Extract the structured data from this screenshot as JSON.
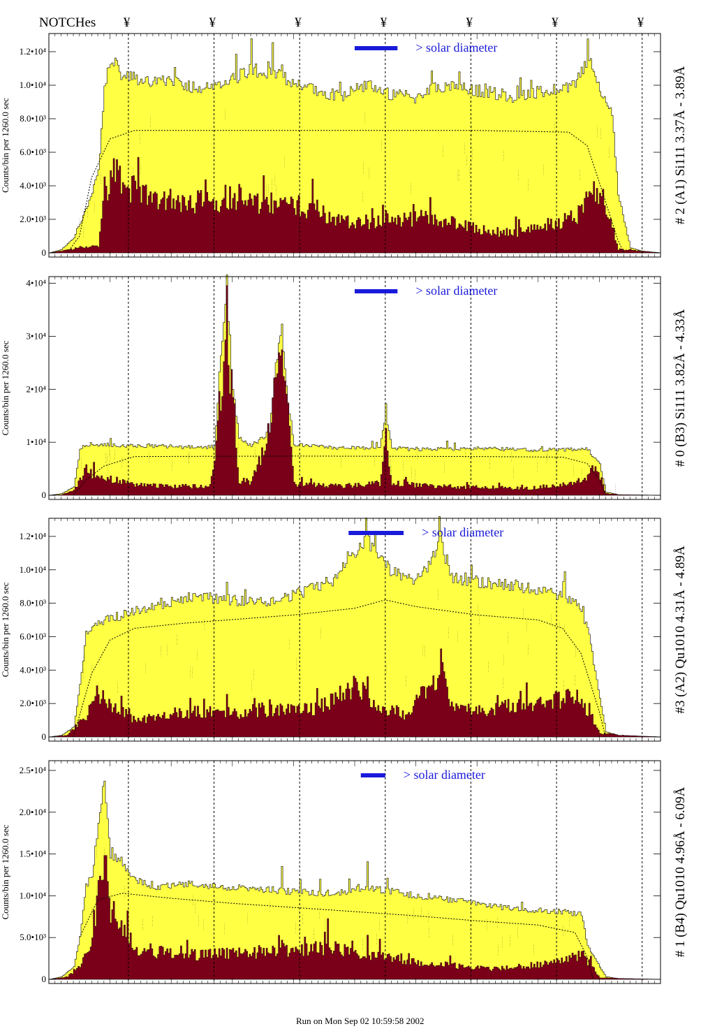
{
  "header": {
    "notches_label": "NOTCHes",
    "notch_symbol": "¥"
  },
  "footer": {
    "run_text": "Run on Mon Sep 02 10:59:58 2002"
  },
  "colors": {
    "total": "#ffff44",
    "continuum": "#7a0019",
    "solar": "#1a1adb"
  },
  "chart_data": [
    {
      "type": "area",
      "title": "# 2 (A1) Si111  3.37Å - 3.89Å",
      "ylabel": "Counts/bin per  1260.0 sec",
      "annotation": "> solar diameter",
      "ylim": [
        0,
        13000
      ],
      "yticks": [
        {
          "v": 0,
          "label": "0"
        },
        {
          "v": 2000,
          "label": "2.0•10³"
        },
        {
          "v": 4000,
          "label": "4.0•10³"
        },
        {
          "v": 6000,
          "label": "6.0•10³"
        },
        {
          "v": 8000,
          "label": "8.0•10³"
        },
        {
          "v": 10000,
          "label": "1.0•10⁴"
        },
        {
          "v": 12000,
          "label": "1.2•10⁴"
        }
      ],
      "xlim": [
        0,
        100
      ],
      "notches": [
        13,
        27,
        41,
        55,
        69,
        83,
        97
      ],
      "total_knots": [
        [
          0,
          0
        ],
        [
          2,
          200
        ],
        [
          4,
          900
        ],
        [
          6,
          2600
        ],
        [
          8,
          4800
        ],
        [
          9,
          9800
        ],
        [
          10,
          11600
        ],
        [
          12,
          10500
        ],
        [
          16,
          10300
        ],
        [
          20,
          10100
        ],
        [
          27,
          9800
        ],
        [
          33,
          11000
        ],
        [
          38,
          10500
        ],
        [
          44,
          9600
        ],
        [
          48,
          9400
        ],
        [
          52,
          10100
        ],
        [
          56,
          9400
        ],
        [
          60,
          9300
        ],
        [
          64,
          10000
        ],
        [
          67,
          9800
        ],
        [
          72,
          9600
        ],
        [
          76,
          9300
        ],
        [
          82,
          9700
        ],
        [
          86,
          10100
        ],
        [
          88,
          11600
        ],
        [
          90,
          9800
        ],
        [
          92,
          8300
        ],
        [
          93,
          3500
        ],
        [
          95,
          300
        ],
        [
          97,
          100
        ],
        [
          100,
          0
        ]
      ],
      "cont_knots": [
        [
          0,
          0
        ],
        [
          2,
          100
        ],
        [
          5,
          300
        ],
        [
          8,
          400
        ],
        [
          9,
          3600
        ],
        [
          11,
          4600
        ],
        [
          14,
          3300
        ],
        [
          20,
          3000
        ],
        [
          26,
          2800
        ],
        [
          30,
          3200
        ],
        [
          34,
          2600
        ],
        [
          38,
          2700
        ],
        [
          42,
          2500
        ],
        [
          48,
          1800
        ],
        [
          52,
          1700
        ],
        [
          55,
          1900
        ],
        [
          58,
          1800
        ],
        [
          62,
          2000
        ],
        [
          66,
          1600
        ],
        [
          70,
          1300
        ],
        [
          74,
          1100
        ],
        [
          78,
          1200
        ],
        [
          82,
          1600
        ],
        [
          86,
          2000
        ],
        [
          89,
          3200
        ],
        [
          91,
          2800
        ],
        [
          93,
          200
        ],
        [
          100,
          0
        ]
      ],
      "total_spikes": [
        [
          33,
          1500
        ],
        [
          38,
          1000
        ],
        [
          67,
          700
        ],
        [
          88,
          1200
        ]
      ],
      "cont_spikes": [
        [
          35,
          1900
        ],
        [
          43,
          800
        ],
        [
          58,
          900
        ],
        [
          66,
          600
        ],
        [
          89,
          700
        ]
      ],
      "model_knots": [
        [
          3,
          0
        ],
        [
          5,
          1000
        ],
        [
          7,
          4500
        ],
        [
          10,
          6800
        ],
        [
          14,
          7300
        ],
        [
          40,
          7300
        ],
        [
          70,
          7300
        ],
        [
          85,
          7200
        ],
        [
          88,
          6400
        ],
        [
          90,
          4200
        ],
        [
          93,
          800
        ],
        [
          94,
          0
        ]
      ],
      "solar_bar": [
        50,
        57
      ]
    },
    {
      "type": "area",
      "title": "# 0 (B3) Si111  3.82Å - 4.33Å",
      "ylabel": "Counts/bin per  1260.0 sec",
      "annotation": "> solar diameter",
      "ylim": [
        0,
        41000
      ],
      "yticks": [
        {
          "v": 0,
          "label": "0"
        },
        {
          "v": 10000,
          "label": "1•10⁴"
        },
        {
          "v": 20000,
          "label": "2•10⁴"
        },
        {
          "v": 30000,
          "label": "3•10⁴"
        },
        {
          "v": 40000,
          "label": "4•10⁴"
        }
      ],
      "xlim": [
        0,
        100
      ],
      "notches": [
        13,
        27,
        41,
        55,
        69,
        83,
        97
      ],
      "total_knots": [
        [
          0,
          0
        ],
        [
          2,
          300
        ],
        [
          4,
          1600
        ],
        [
          5,
          8600
        ],
        [
          6,
          9600
        ],
        [
          14,
          9400
        ],
        [
          25,
          9000
        ],
        [
          27,
          9200
        ],
        [
          28,
          27000
        ],
        [
          29,
          38000
        ],
        [
          30,
          20000
        ],
        [
          31,
          11000
        ],
        [
          33,
          9300
        ],
        [
          36,
          12000
        ],
        [
          37,
          25000
        ],
        [
          38,
          31000
        ],
        [
          39,
          18000
        ],
        [
          40,
          9500
        ],
        [
          46,
          9000
        ],
        [
          54,
          8800
        ],
        [
          55,
          15000
        ],
        [
          56,
          9000
        ],
        [
          60,
          8600
        ],
        [
          70,
          8900
        ],
        [
          80,
          8500
        ],
        [
          88,
          8700
        ],
        [
          90,
          5800
        ],
        [
          91,
          600
        ],
        [
          93,
          100
        ],
        [
          100,
          0
        ]
      ],
      "cont_knots": [
        [
          0,
          0
        ],
        [
          2,
          100
        ],
        [
          4,
          800
        ],
        [
          6,
          4400
        ],
        [
          8,
          3300
        ],
        [
          14,
          1800
        ],
        [
          20,
          1600
        ],
        [
          26,
          1500
        ],
        [
          27,
          5000
        ],
        [
          28,
          18000
        ],
        [
          29,
          28000
        ],
        [
          30,
          18000
        ],
        [
          31,
          2600
        ],
        [
          33,
          2200
        ],
        [
          35,
          8000
        ],
        [
          37,
          20000
        ],
        [
          38,
          25000
        ],
        [
          39,
          15000
        ],
        [
          40,
          1900
        ],
        [
          48,
          1600
        ],
        [
          54,
          2100
        ],
        [
          55,
          8600
        ],
        [
          56,
          2100
        ],
        [
          62,
          1600
        ],
        [
          70,
          1400
        ],
        [
          78,
          1200
        ],
        [
          86,
          2000
        ],
        [
          89,
          4400
        ],
        [
          90,
          3000
        ],
        [
          91,
          300
        ],
        [
          100,
          0
        ]
      ],
      "total_spikes": [
        [
          29,
          4000
        ],
        [
          38,
          2000
        ],
        [
          55,
          2000
        ],
        [
          65,
          1500
        ]
      ],
      "cont_spikes": [
        [
          29,
          3000
        ],
        [
          38,
          2000
        ],
        [
          55,
          1000
        ]
      ],
      "model_knots": [
        [
          4,
          0
        ],
        [
          6,
          2800
        ],
        [
          9,
          5500
        ],
        [
          14,
          7300
        ],
        [
          40,
          7400
        ],
        [
          70,
          7300
        ],
        [
          84,
          7200
        ],
        [
          88,
          6000
        ],
        [
          90,
          3000
        ],
        [
          91,
          0
        ]
      ],
      "solar_bar": [
        50,
        57
      ]
    },
    {
      "type": "area",
      "title": "#3 (A2) Qu1010  4.31Å - 4.89Å",
      "ylabel": "Counts/bin per  1260.0 sec",
      "annotation": "> solar diameter",
      "ylim": [
        0,
        13000
      ],
      "yticks": [
        {
          "v": 0,
          "label": "0"
        },
        {
          "v": 2000,
          "label": "2.0•10³"
        },
        {
          "v": 4000,
          "label": "4.0•10³"
        },
        {
          "v": 6000,
          "label": "6.0•10³"
        },
        {
          "v": 8000,
          "label": "8.0•10³"
        },
        {
          "v": 10000,
          "label": "1.0•10⁴"
        },
        {
          "v": 12000,
          "label": "1.2•10⁴"
        }
      ],
      "xlim": [
        0,
        100
      ],
      "notches": [
        13,
        27,
        41,
        55,
        69,
        83,
        97
      ],
      "total_knots": [
        [
          0,
          0
        ],
        [
          2,
          100
        ],
        [
          4,
          600
        ],
        [
          5,
          3200
        ],
        [
          6,
          6200
        ],
        [
          8,
          6900
        ],
        [
          14,
          7500
        ],
        [
          22,
          8300
        ],
        [
          28,
          8300
        ],
        [
          34,
          8000
        ],
        [
          40,
          8500
        ],
        [
          46,
          9300
        ],
        [
          52,
          11800
        ],
        [
          56,
          9900
        ],
        [
          60,
          9300
        ],
        [
          64,
          11500
        ],
        [
          66,
          9500
        ],
        [
          72,
          9200
        ],
        [
          80,
          8800
        ],
        [
          86,
          8200
        ],
        [
          88,
          6600
        ],
        [
          90,
          2300
        ],
        [
          91,
          300
        ],
        [
          93,
          100
        ],
        [
          100,
          0
        ]
      ],
      "cont_knots": [
        [
          0,
          0
        ],
        [
          3,
          100
        ],
        [
          6,
          1200
        ],
        [
          8,
          2300
        ],
        [
          10,
          1800
        ],
        [
          14,
          900
        ],
        [
          20,
          1300
        ],
        [
          26,
          1400
        ],
        [
          32,
          1300
        ],
        [
          38,
          1500
        ],
        [
          44,
          1600
        ],
        [
          50,
          2800
        ],
        [
          54,
          1700
        ],
        [
          58,
          1200
        ],
        [
          62,
          2800
        ],
        [
          64,
          3600
        ],
        [
          66,
          1700
        ],
        [
          70,
          1400
        ],
        [
          76,
          1700
        ],
        [
          82,
          2000
        ],
        [
          86,
          2200
        ],
        [
          88,
          1500
        ],
        [
          90,
          200
        ],
        [
          100,
          0
        ]
      ],
      "total_spikes": [
        [
          29,
          1000
        ],
        [
          52,
          800
        ],
        [
          64,
          1000
        ]
      ],
      "cont_spikes": [
        [
          29,
          900
        ],
        [
          52,
          700
        ],
        [
          64,
          700
        ]
      ],
      "model_knots": [
        [
          4,
          0
        ],
        [
          7,
          3800
        ],
        [
          10,
          5800
        ],
        [
          14,
          6500
        ],
        [
          22,
          6800
        ],
        [
          40,
          7300
        ],
        [
          50,
          7700
        ],
        [
          55,
          8200
        ],
        [
          60,
          7800
        ],
        [
          70,
          7300
        ],
        [
          80,
          7000
        ],
        [
          84,
          6500
        ],
        [
          87,
          5000
        ],
        [
          90,
          1500
        ],
        [
          91,
          0
        ]
      ],
      "solar_bar": [
        49,
        58
      ]
    },
    {
      "type": "area",
      "title": "# 1 (B4) Qu1010 4.96Å - 6.09Å",
      "ylabel": "Counts/bin per  1260.0 sec",
      "annotation": "> solar diameter",
      "ylim": [
        0,
        26000
      ],
      "yticks": [
        {
          "v": 0,
          "label": "0"
        },
        {
          "v": 5000,
          "label": "5.0•10³"
        },
        {
          "v": 10000,
          "label": "1.0•10⁴"
        },
        {
          "v": 15000,
          "label": "1.5•10⁴"
        },
        {
          "v": 20000,
          "label": "2.0•10⁴"
        },
        {
          "v": 25000,
          "label": "2.5•10⁴"
        }
      ],
      "xlim": [
        0,
        100
      ],
      "notches": [
        13,
        27,
        41,
        55,
        69,
        83,
        97
      ],
      "total_knots": [
        [
          0,
          0
        ],
        [
          2,
          300
        ],
        [
          4,
          1500
        ],
        [
          5,
          5000
        ],
        [
          6,
          11000
        ],
        [
          7,
          12500
        ],
        [
          8,
          19000
        ],
        [
          9,
          23500
        ],
        [
          10,
          15000
        ],
        [
          12,
          14000
        ],
        [
          14,
          12000
        ],
        [
          18,
          11000
        ],
        [
          22,
          11500
        ],
        [
          28,
          11000
        ],
        [
          34,
          10800
        ],
        [
          40,
          10500
        ],
        [
          46,
          10300
        ],
        [
          52,
          11000
        ],
        [
          56,
          10500
        ],
        [
          60,
          10000
        ],
        [
          66,
          9500
        ],
        [
          72,
          8800
        ],
        [
          78,
          8300
        ],
        [
          84,
          8100
        ],
        [
          87,
          7700
        ],
        [
          88,
          4000
        ],
        [
          90,
          1500
        ],
        [
          91,
          300
        ],
        [
          93,
          100
        ],
        [
          100,
          0
        ]
      ],
      "cont_knots": [
        [
          0,
          0
        ],
        [
          3,
          300
        ],
        [
          5,
          1600
        ],
        [
          7,
          3700
        ],
        [
          8,
          9700
        ],
        [
          9,
          14000
        ],
        [
          10,
          7600
        ],
        [
          12,
          5200
        ],
        [
          14,
          3500
        ],
        [
          20,
          2700
        ],
        [
          26,
          2800
        ],
        [
          32,
          2900
        ],
        [
          38,
          3200
        ],
        [
          44,
          3600
        ],
        [
          48,
          3300
        ],
        [
          52,
          2600
        ],
        [
          56,
          2300
        ],
        [
          60,
          1800
        ],
        [
          66,
          1500
        ],
        [
          72,
          1200
        ],
        [
          78,
          1500
        ],
        [
          84,
          2000
        ],
        [
          87,
          2800
        ],
        [
          89,
          1200
        ],
        [
          90,
          200
        ],
        [
          100,
          0
        ]
      ],
      "total_spikes": [
        [
          9,
          0
        ],
        [
          38,
          2500
        ],
        [
          52,
          3000
        ]
      ],
      "cont_spikes": [
        [
          9,
          0
        ],
        [
          38,
          2000
        ],
        [
          45,
          2500
        ],
        [
          52,
          2000
        ]
      ],
      "model_knots": [
        [
          5,
          5000
        ],
        [
          8,
          9500
        ],
        [
          12,
          10300
        ],
        [
          20,
          9700
        ],
        [
          30,
          9100
        ],
        [
          40,
          8600
        ],
        [
          50,
          8100
        ],
        [
          60,
          7600
        ],
        [
          70,
          7000
        ],
        [
          80,
          6500
        ],
        [
          86,
          5600
        ],
        [
          88,
          2700
        ],
        [
          89,
          0
        ]
      ],
      "solar_bar": [
        51,
        55
      ]
    }
  ]
}
